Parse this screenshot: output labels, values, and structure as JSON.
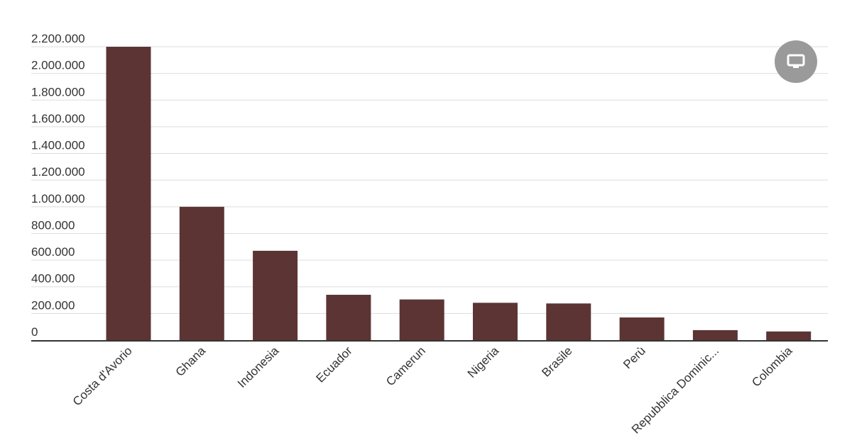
{
  "chart_data": {
    "type": "bar",
    "categories": [
      "Costa d'Avorio",
      "Ghana",
      "Indonesia",
      "Ecuador",
      "Camerun",
      "Nigeria",
      "Brasile",
      "Perù",
      "Repubblica Dominic...",
      "Colombia"
    ],
    "values": [
      2200000,
      1000000,
      670000,
      340000,
      305000,
      280000,
      275000,
      170000,
      75000,
      65000
    ],
    "ylim": [
      0,
      2200000
    ],
    "yticks": [
      0,
      200000,
      400000,
      600000,
      800000,
      1000000,
      1200000,
      1400000,
      1600000,
      1800000,
      2000000,
      2200000
    ],
    "ytick_labels": [
      "0",
      "200.000",
      "400.000",
      "600.000",
      "800.000",
      "1.000.000",
      "1.200.000",
      "1.400.000",
      "1.600.000",
      "1.800.000",
      "2.000.000",
      "2.200.000"
    ],
    "bar_color": "#5c3434",
    "grid": true,
    "legend": "none"
  },
  "controls": {
    "display_button_icon": "monitor-icon"
  }
}
